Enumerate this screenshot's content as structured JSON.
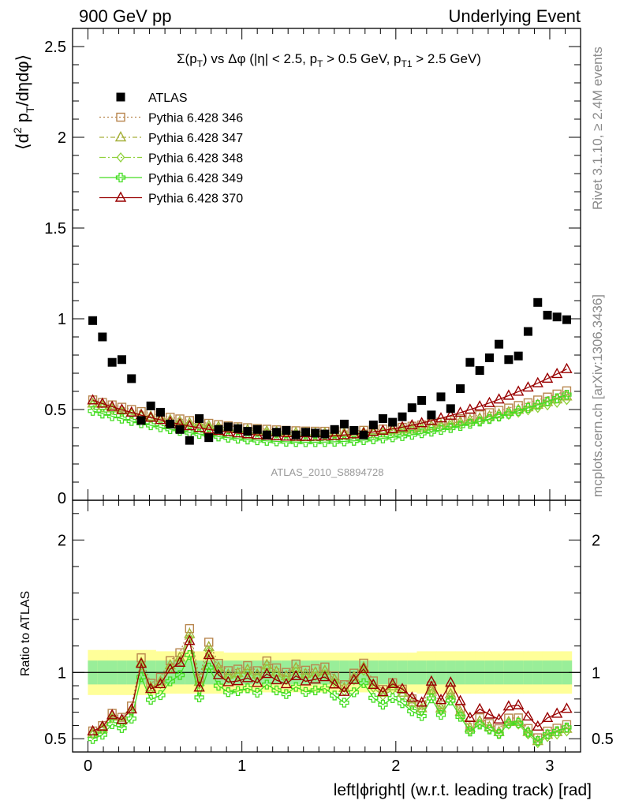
{
  "header": {
    "left": "900 GeV pp",
    "right": "Underlying Event"
  },
  "side_text": {
    "rivet": "Rivet 3.1.10, ≥ 2.4M events",
    "mcplots": "mcplots.cern.ch [arXiv:1306.3436]"
  },
  "chart_data": {
    "type": "scatter",
    "title_parts": {
      "p1": "Σ(p",
      "s1": "T",
      "p2": ") vs Δφ (|η| < 2.5, p",
      "s2": "T",
      "p3": " > 0.5 GeV, p",
      "s3": "T1",
      "p4": " > 2.5 GeV)"
    },
    "ylabel_parts": {
      "a": "⟨d",
      "sup": "2",
      "b": " p",
      "sub": "T",
      "c": "/dηdφ⟩"
    },
    "ratio_ylabel": "Ratio to ATLAS",
    "xlabel": "left|ϕright| (w.r.t. leading track) [rad]",
    "watermark": "ATLAS_2010_S8894728",
    "xlim": [
      -0.1,
      3.2
    ],
    "ylim": [
      0,
      2.6
    ],
    "ratio_ylim": [
      0.4,
      2.3
    ],
    "x_ticks": [
      "0",
      "1",
      "2",
      "3"
    ],
    "y_ticks": [
      "0.5",
      "1",
      "1.5",
      "2",
      "2.5"
    ],
    "y_zero_label": "0",
    "ratio_ticks_left": [
      "0.5",
      "1",
      "2"
    ],
    "ratio_ticks_right": [
      "0.5",
      "1",
      "2"
    ],
    "x": [
      0.031,
      0.094,
      0.157,
      0.22,
      0.283,
      0.346,
      0.408,
      0.471,
      0.534,
      0.597,
      0.66,
      0.723,
      0.785,
      0.848,
      0.911,
      0.974,
      1.037,
      1.1,
      1.162,
      1.225,
      1.288,
      1.351,
      1.414,
      1.477,
      1.539,
      1.602,
      1.665,
      1.728,
      1.791,
      1.854,
      1.916,
      1.979,
      2.042,
      2.105,
      2.168,
      2.231,
      2.293,
      2.356,
      2.419,
      2.482,
      2.545,
      2.608,
      2.67,
      2.733,
      2.796,
      2.859,
      2.922,
      2.985,
      3.047,
      3.11
    ],
    "atlas": [
      0.99,
      0.9,
      0.76,
      0.775,
      0.67,
      0.44,
      0.52,
      0.485,
      0.42,
      0.39,
      0.33,
      0.45,
      0.345,
      0.39,
      0.405,
      0.395,
      0.38,
      0.39,
      0.36,
      0.375,
      0.385,
      0.36,
      0.375,
      0.37,
      0.365,
      0.39,
      0.42,
      0.385,
      0.36,
      0.415,
      0.45,
      0.43,
      0.46,
      0.51,
      0.55,
      0.47,
      0.57,
      0.505,
      0.615,
      0.76,
      0.715,
      0.785,
      0.86,
      0.775,
      0.795,
      0.93,
      1.09,
      1.02,
      1.01,
      0.995
    ],
    "band_outer": [
      0.17,
      0.17,
      0.17,
      0.17,
      0.17,
      0.17,
      0.17,
      0.16,
      0.16,
      0.16,
      0.16,
      0.16,
      0.16,
      0.16,
      0.15,
      0.15,
      0.15,
      0.15,
      0.15,
      0.15,
      0.15,
      0.15,
      0.15,
      0.15,
      0.15,
      0.15,
      0.15,
      0.15,
      0.15,
      0.15,
      0.15,
      0.15,
      0.15,
      0.15,
      0.16,
      0.16,
      0.16,
      0.16,
      0.16,
      0.16,
      0.16,
      0.16,
      0.16,
      0.16,
      0.16,
      0.16,
      0.16,
      0.16,
      0.16,
      0.16
    ],
    "band_inner": [
      0.09,
      0.09,
      0.09,
      0.09,
      0.09,
      0.09,
      0.09,
      0.09,
      0.09,
      0.09,
      0.09,
      0.09,
      0.09,
      0.09,
      0.09,
      0.09,
      0.09,
      0.09,
      0.09,
      0.09,
      0.09,
      0.09,
      0.09,
      0.09,
      0.09,
      0.09,
      0.09,
      0.09,
      0.09,
      0.09,
      0.09,
      0.09,
      0.09,
      0.09,
      0.09,
      0.09,
      0.09,
      0.09,
      0.09,
      0.09,
      0.09,
      0.09,
      0.09,
      0.09,
      0.09,
      0.09,
      0.09,
      0.09,
      0.09,
      0.09
    ],
    "series": [
      {
        "name": "ATLAS",
        "color": "#000000",
        "marker": "square-filled"
      },
      {
        "name": "Pythia 6.428 346",
        "color": "#b8864e",
        "marker": "open-square",
        "dash": "2,3",
        "params": {
          "a": 0.56,
          "b": 0.38,
          "c": 0.6,
          "m": 1.55
        }
      },
      {
        "name": "Pythia 6.428 347",
        "color": "#a6b03a",
        "marker": "open-triangle",
        "dash": "6,3,2,3",
        "params": {
          "a": 0.54,
          "b": 0.37,
          "c": 0.57,
          "m": 1.55
        }
      },
      {
        "name": "Pythia 6.428 348",
        "color": "#8fd13a",
        "marker": "open-diamond",
        "dash": "8,3,2,3",
        "params": {
          "a": 0.53,
          "b": 0.36,
          "c": 0.55,
          "m": 1.55
        }
      },
      {
        "name": "Pythia 6.428 349",
        "color": "#44dd22",
        "marker": "open-cross",
        "dash": "",
        "params": {
          "a": 0.5,
          "b": 0.32,
          "c": 0.52,
          "m": 1.45
        }
      },
      {
        "name": "Pythia 6.428 370",
        "color": "#990000",
        "marker": "open-triangle",
        "dash": "",
        "params": {
          "a": 0.56,
          "b": 0.35,
          "c": 0.6,
          "m": 1.4
        }
      }
    ]
  }
}
